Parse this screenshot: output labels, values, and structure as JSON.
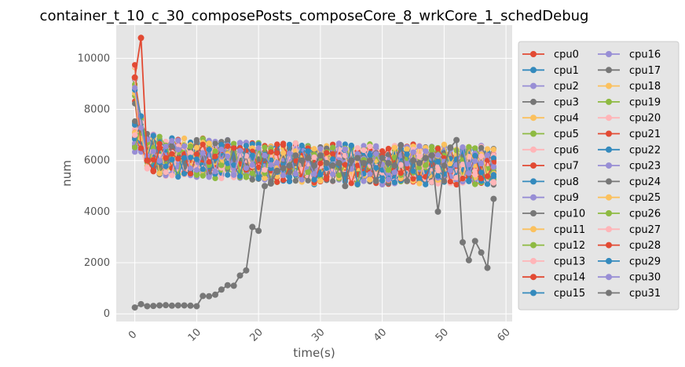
{
  "chart_data": {
    "type": "line",
    "title": "container_t_10_c_30_composePosts_composeCore_8_wrkCore_1_schedDebug",
    "xlabel": "time(s)",
    "ylabel": "num",
    "xlim": [
      -3,
      61
    ],
    "ylim": [
      -300,
      11300
    ],
    "xticks": [
      0,
      10,
      20,
      30,
      40,
      50,
      60
    ],
    "yticks": [
      0,
      2000,
      4000,
      6000,
      8000,
      10000
    ],
    "grid": true,
    "legend_position": "right",
    "series": [
      {
        "name": "cpu0",
        "color": "#E24A33"
      },
      {
        "name": "cpu1",
        "color": "#348ABD"
      },
      {
        "name": "cpu2",
        "color": "#988ED5"
      },
      {
        "name": "cpu3",
        "color": "#777777"
      },
      {
        "name": "cpu4",
        "color": "#FBC15E"
      },
      {
        "name": "cpu5",
        "color": "#8EBA42"
      },
      {
        "name": "cpu6",
        "color": "#FFB5B8"
      },
      {
        "name": "cpu7",
        "color": "#E24A33"
      },
      {
        "name": "cpu8",
        "color": "#348ABD"
      },
      {
        "name": "cpu9",
        "color": "#988ED5"
      },
      {
        "name": "cpu10",
        "color": "#777777"
      },
      {
        "name": "cpu11",
        "color": "#FBC15E"
      },
      {
        "name": "cpu12",
        "color": "#8EBA42"
      },
      {
        "name": "cpu13",
        "color": "#FFB5B8"
      },
      {
        "name": "cpu14",
        "color": "#E24A33"
      },
      {
        "name": "cpu15",
        "color": "#348ABD"
      },
      {
        "name": "cpu16",
        "color": "#988ED5"
      },
      {
        "name": "cpu17",
        "color": "#777777"
      },
      {
        "name": "cpu18",
        "color": "#FBC15E"
      },
      {
        "name": "cpu19",
        "color": "#8EBA42"
      },
      {
        "name": "cpu20",
        "color": "#FFB5B8"
      },
      {
        "name": "cpu21",
        "color": "#E24A33"
      },
      {
        "name": "cpu22",
        "color": "#348ABD"
      },
      {
        "name": "cpu23",
        "color": "#988ED5"
      },
      {
        "name": "cpu24",
        "color": "#777777"
      },
      {
        "name": "cpu25",
        "color": "#FBC15E"
      },
      {
        "name": "cpu26",
        "color": "#8EBA42"
      },
      {
        "name": "cpu27",
        "color": "#FFB5B8"
      },
      {
        "name": "cpu28",
        "color": "#E24A33"
      },
      {
        "name": "cpu29",
        "color": "#348ABD"
      },
      {
        "name": "cpu30",
        "color": "#988ED5"
      },
      {
        "name": "cpu31",
        "color": "#777777",
        "x": [
          0,
          1,
          2,
          3,
          4,
          5,
          6,
          7,
          8,
          9,
          10,
          11,
          12,
          13,
          14,
          15,
          16,
          17,
          18,
          19,
          20,
          21,
          22,
          23,
          24,
          25,
          26,
          27,
          28,
          29,
          30,
          31,
          32,
          33,
          34,
          35,
          36,
          37,
          38,
          39,
          40,
          41,
          42,
          43,
          44,
          45,
          46,
          47,
          48,
          49,
          50,
          51,
          52,
          53,
          54,
          55,
          56,
          57,
          58
        ],
        "values": [
          250,
          380,
          300,
          310,
          330,
          340,
          320,
          330,
          330,
          320,
          300,
          700,
          690,
          750,
          950,
          1120,
          1100,
          1500,
          1700,
          3400,
          3250,
          5000,
          5100,
          5600,
          5700,
          5800,
          6200,
          6000,
          6100,
          5800,
          6200,
          5900,
          5800,
          5900,
          5000,
          6000,
          6100,
          5900,
          6000,
          5200,
          6100,
          5900,
          5800,
          6600,
          5200,
          6000,
          5900,
          6100,
          6200,
          4000,
          5800,
          6500,
          6800,
          2800,
          2100,
          2850,
          2400,
          1800,
          4500
        ]
      }
    ],
    "background_band": {
      "x_start": 0,
      "x_end": 58,
      "center_values": [
        8600,
        7000,
        6400,
        6300,
        6200,
        6100,
        6150,
        6100,
        6200,
        6050,
        6100,
        6150,
        6100,
        6050,
        6000,
        6100,
        6000,
        6050,
        6000,
        5950,
        6000,
        5900,
        5850,
        5900,
        5950,
        5900,
        5950,
        5900,
        5850,
        5800,
        5900,
        5850,
        5900,
        5950,
        5900,
        5850,
        5800,
        5850,
        5900,
        5850,
        5800,
        5800,
        5850,
        5900,
        5800,
        5900,
        5850,
        5800,
        5850,
        5800,
        5900,
        5850,
        5800,
        5850,
        5900,
        5800,
        5850,
        5800,
        5750
      ]
    }
  }
}
